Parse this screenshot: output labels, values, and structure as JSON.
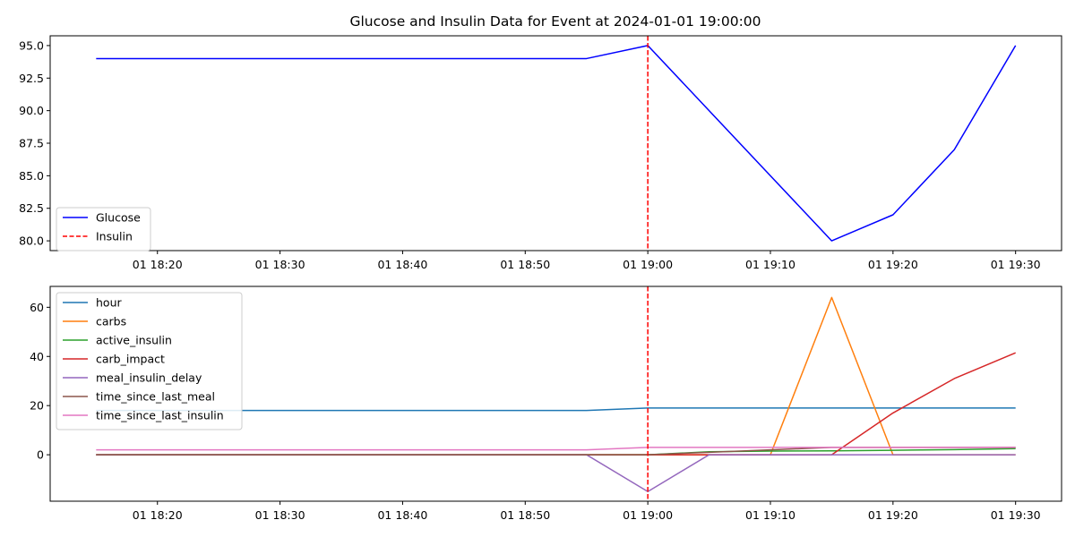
{
  "chart_data": [
    {
      "type": "line",
      "title": "Glucose and Insulin Data for Event at 2024-01-01 19:00:00",
      "xlabel": "",
      "ylabel": "",
      "x_range": [
        "2024-01-01 18:15",
        "2024-01-01 19:30"
      ],
      "x_tick_labels": [
        "01 18:20",
        "01 18:30",
        "01 18:40",
        "01 18:50",
        "01 19:00",
        "01 19:10",
        "01 19:20",
        "01 19:30"
      ],
      "x_tick_times": [
        "18:20",
        "18:30",
        "18:40",
        "18:50",
        "19:00",
        "19:10",
        "19:20",
        "19:30"
      ],
      "ylim": [
        79.25,
        95.75
      ],
      "y_ticks": [
        80.0,
        82.5,
        85.0,
        87.5,
        90.0,
        92.5,
        95.0
      ],
      "y_tick_labels": [
        "80.0",
        "82.5",
        "85.0",
        "87.5",
        "90.0",
        "92.5",
        "95.0"
      ],
      "grid": false,
      "legend_position": "lower-left",
      "event_time": "19:00",
      "event_label": "Insulin",
      "event_color": "#ff0000",
      "x": [
        "18:15",
        "18:20",
        "18:25",
        "18:30",
        "18:35",
        "18:40",
        "18:45",
        "18:50",
        "18:55",
        "19:00",
        "19:05",
        "19:10",
        "19:15",
        "19:20",
        "19:25",
        "19:30"
      ],
      "series": [
        {
          "name": "Glucose",
          "color": "#0000ff",
          "values": [
            94,
            94,
            94,
            94,
            94,
            94,
            94,
            94,
            94,
            95,
            90,
            85,
            80,
            82,
            87,
            95
          ]
        }
      ]
    },
    {
      "type": "line",
      "title": "",
      "xlabel": "",
      "ylabel": "",
      "x_range": [
        "2024-01-01 18:15",
        "2024-01-01 19:30"
      ],
      "x_tick_labels": [
        "01 18:20",
        "01 18:30",
        "01 18:40",
        "01 18:50",
        "01 19:00",
        "01 19:10",
        "01 19:20",
        "01 19:30"
      ],
      "x_tick_times": [
        "18:20",
        "18:30",
        "18:40",
        "18:50",
        "19:00",
        "19:10",
        "19:20",
        "19:30"
      ],
      "ylim": [
        -18.9,
        68.5
      ],
      "y_ticks": [
        0,
        20,
        40,
        60
      ],
      "y_tick_labels": [
        "0",
        "20",
        "40",
        "60"
      ],
      "grid": false,
      "legend_position": "upper-left",
      "event_time": "19:00",
      "event_color": "#ff0000",
      "x": [
        "18:15",
        "18:20",
        "18:25",
        "18:30",
        "18:35",
        "18:40",
        "18:45",
        "18:50",
        "18:55",
        "19:00",
        "19:05",
        "19:10",
        "19:15",
        "19:20",
        "19:25",
        "19:30"
      ],
      "series": [
        {
          "name": "hour",
          "color": "#1f77b4",
          "values": [
            18,
            18,
            18,
            18,
            18,
            18,
            18,
            18,
            18,
            19,
            19,
            19,
            19,
            19,
            19,
            19
          ]
        },
        {
          "name": "carbs",
          "color": "#ff7f0e",
          "values": [
            0,
            0,
            0,
            0,
            0,
            0,
            0,
            0,
            0,
            0,
            0,
            0,
            64,
            0,
            0,
            0
          ]
        },
        {
          "name": "active_insulin",
          "color": "#2ca02c",
          "values": [
            0,
            0,
            0,
            0,
            0,
            0,
            0,
            0,
            0,
            0,
            1.2,
            1.5,
            1.6,
            1.8,
            2.1,
            2.5
          ]
        },
        {
          "name": "carb_impact",
          "color": "#d62728",
          "values": [
            0,
            0,
            0,
            0,
            0,
            0,
            0,
            0,
            0,
            0,
            0,
            0,
            0,
            17,
            31,
            41.5
          ]
        },
        {
          "name": "meal_insulin_delay",
          "color": "#9467bd",
          "values": [
            0,
            0,
            0,
            0,
            0,
            0,
            0,
            0,
            0,
            -15,
            0,
            0,
            0,
            0,
            0,
            0
          ]
        },
        {
          "name": "time_since_last_meal",
          "color": "#8c564b",
          "values": [
            0,
            0,
            0,
            0,
            0,
            0,
            0,
            0,
            0,
            0,
            1,
            2,
            3,
            3,
            3,
            3
          ]
        },
        {
          "name": "time_since_last_insulin",
          "color": "#e377c2",
          "values": [
            2,
            2,
            2,
            2,
            2,
            2,
            2,
            2,
            2,
            3,
            3,
            3,
            3,
            3,
            3,
            3
          ]
        }
      ]
    }
  ]
}
